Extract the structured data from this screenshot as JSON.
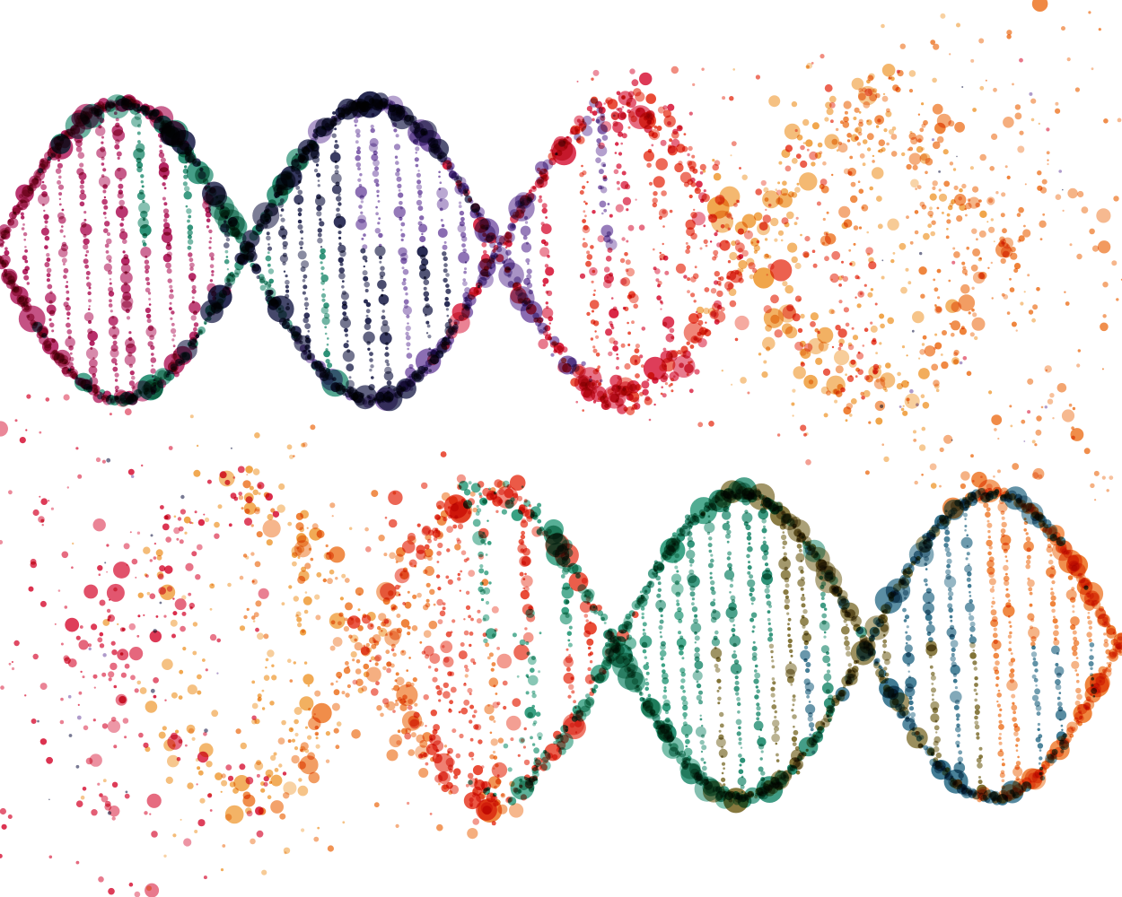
{
  "artwork": {
    "subject": "watercolor-dna-double-helix",
    "background_color": "#ffffff",
    "palette": {
      "crimson": "#d81b3c",
      "red": "#e8412b",
      "orange": "#ee7a2c",
      "amber": "#f0a040",
      "pink": "#e0507a",
      "magenta": "#b0185a",
      "teal": "#1e8a6e",
      "green": "#2a9a7a",
      "navy": "#1c1f4a",
      "purple": "#7a58a8",
      "olive": "#7a6a2a",
      "slate": "#2f6f8a"
    },
    "helices": [
      {
        "name": "upper-helix",
        "direction": "fades-to-right",
        "colors_left_to_right": [
          "magenta",
          "teal",
          "navy",
          "purple",
          "crimson",
          "red",
          "amber",
          "orange"
        ]
      },
      {
        "name": "lower-helix",
        "direction": "fades-to-left",
        "colors_left_to_right": [
          "crimson",
          "amber",
          "orange",
          "red",
          "green",
          "teal",
          "olive",
          "slate",
          "orange"
        ]
      }
    ]
  }
}
